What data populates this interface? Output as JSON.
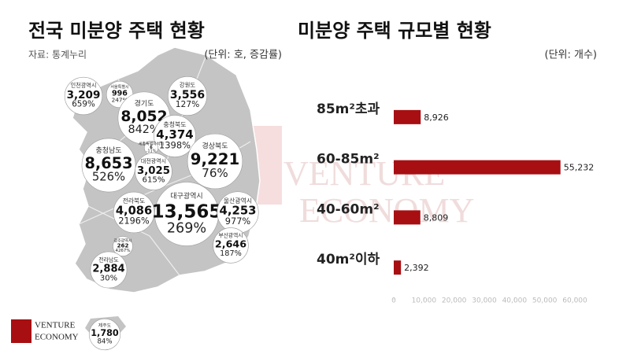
{
  "header": {
    "title": "전국 미분양 주택 현황",
    "source": "자료: 통계누리",
    "unit": "(단위: 호, 증감률)"
  },
  "map": {
    "regions": [
      {
        "name": "인천광역시",
        "count": {
          "value": 3209,
          "label": "3,209"
        },
        "change": "659%"
      },
      {
        "name": "서울특별시",
        "count": 996,
        "change": "247%"
      },
      {
        "name": "경기도",
        "count": {
          "value": 8052,
          "label": "8,052"
        },
        "change": "842%"
      },
      {
        "name": "강원도",
        "count": {
          "value": 3556,
          "label": "3,556"
        },
        "change": "127%"
      },
      {
        "name": "충청북도",
        "count": {
          "value": 4374,
          "label": "4,374"
        },
        "change": "1398%"
      },
      {
        "name": "세종특별자치시",
        "count": 6,
        "change": "-11%"
      },
      {
        "name": "충청남도",
        "count": {
          "value": 8653,
          "label": "8,653"
        },
        "change": "526%"
      },
      {
        "name": "대전광역시",
        "count": {
          "value": 3025,
          "label": "3,025"
        },
        "change": "615%"
      },
      {
        "name": "경상북도",
        "count": {
          "value": 9221,
          "label": "9,221"
        },
        "change": "76%"
      },
      {
        "name": "전라북도",
        "count": {
          "value": 4086,
          "label": "4,086"
        },
        "change": "2196%"
      },
      {
        "name": "대구광역시",
        "count": {
          "value": 13565,
          "label": "13,565"
        },
        "change": "269%"
      },
      {
        "name": "울산광역시",
        "count": {
          "value": 4253,
          "label": "4,253"
        },
        "change": "977%"
      },
      {
        "name": "광주광역시",
        "count": 262,
        "change": "4267%"
      },
      {
        "name": "부산광역시",
        "count": {
          "value": 2646,
          "label": "2,646"
        },
        "change": "187%"
      },
      {
        "name": "전라남도",
        "count": {
          "value": 2884,
          "label": "2,884"
        },
        "change": "30%"
      },
      {
        "name": "제주도",
        "count": {
          "value": 1780,
          "label": "1,780"
        },
        "change": "84%"
      }
    ]
  },
  "logo": {
    "line1": "VENTURE",
    "line2": "ECONOMY"
  },
  "watermark": {
    "line1": "VENTURE",
    "line2": "ECONOMY"
  },
  "chart_data": {
    "type": "bar",
    "orientation": "horizontal",
    "title": "미분양 주택 규모별 현황",
    "unit": "(단위: 개수)",
    "categories": [
      "85m²초과",
      "60-85m²",
      "40-60m²",
      "40m²이하"
    ],
    "values": [
      8926,
      55232,
      8809,
      2392
    ],
    "value_labels": [
      "8,926",
      "55,232",
      "8,809",
      "2,392"
    ],
    "color": "#a80f12",
    "grid": false,
    "xlim": [
      0,
      60000
    ],
    "xticks": [
      0,
      {
        "value": 10000,
        "label": "10,000"
      },
      {
        "value": 20000,
        "label": "20,000"
      },
      {
        "value": 30000,
        "label": "30,000"
      },
      {
        "value": 40000,
        "label": "40,000"
      },
      {
        "value": 50000,
        "label": "50,000"
      },
      {
        "value": 60000,
        "label": "60,000"
      }
    ]
  }
}
